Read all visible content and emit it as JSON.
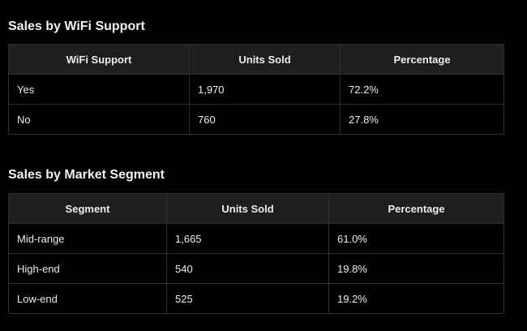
{
  "tables": [
    {
      "title": "Sales by WiFi Support",
      "headers": [
        "WiFi Support",
        "Units Sold",
        "Percentage"
      ],
      "rows": [
        [
          "Yes",
          "1,970",
          "72.2%"
        ],
        [
          "No",
          "760",
          "27.8%"
        ]
      ]
    },
    {
      "title": "Sales by Market Segment",
      "headers": [
        "Segment",
        "Units Sold",
        "Percentage"
      ],
      "rows": [
        [
          "Mid-range",
          "1,665",
          "61.0%"
        ],
        [
          "High-end",
          "540",
          "19.8%"
        ],
        [
          "Low-end",
          "525",
          "19.2%"
        ]
      ]
    }
  ]
}
